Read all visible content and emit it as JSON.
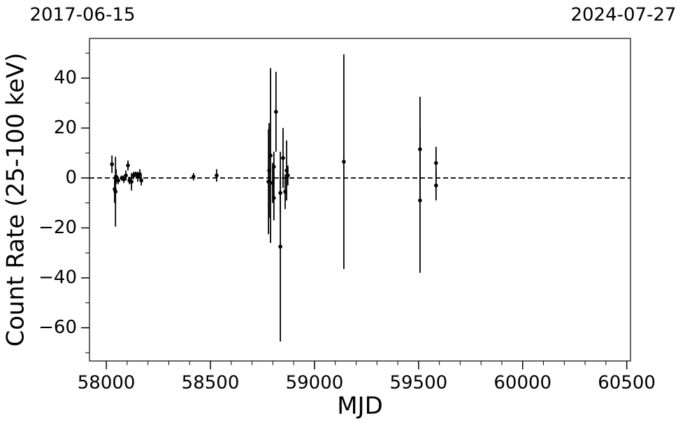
{
  "chart_data": {
    "type": "errorbar",
    "xlabel": "MJD",
    "ylabel": "Count Rate (25-100 keV)",
    "xlim": [
      57919,
      60518
    ],
    "ylim": [
      -73.3,
      55.9
    ],
    "xticks": [
      58000,
      58500,
      59000,
      59500,
      60000,
      60500
    ],
    "xminorticks": [
      58100,
      58200,
      58300,
      58400,
      58600,
      58700,
      58800,
      58900,
      59100,
      59200,
      59300,
      59400,
      59600,
      59700,
      59800,
      59900,
      60100,
      60200,
      60300,
      60400
    ],
    "yticks": [
      {
        "value": -60,
        "label": "−60"
      },
      {
        "value": -40,
        "label": "−40"
      },
      {
        "value": -20,
        "label": "−20"
      },
      0,
      20,
      40
    ],
    "yminorticks": [
      -70,
      -50,
      -30,
      -10,
      10,
      30,
      50
    ],
    "x2ticks": [
      {
        "value": 57919,
        "label": "2017-06-15"
      },
      {
        "value": 60518,
        "label": "2024-07-27"
      }
    ],
    "reference_line": 0,
    "color": "#000000",
    "x": [
      58027,
      58040,
      58044,
      58047,
      58057,
      58074,
      58084,
      58094,
      58104,
      58111,
      58121,
      58131,
      58141,
      58151,
      58161,
      58168,
      58419,
      58530,
      58779,
      58782,
      58789,
      58799,
      58805,
      58805,
      58815,
      58836,
      58836,
      58849,
      58859,
      58866,
      58872,
      59141,
      59507,
      59507,
      59584,
      59584
    ],
    "values": [
      5.5,
      -4.5,
      -5.5,
      0.5,
      -1,
      0,
      -0.5,
      1,
      5,
      -1,
      -1.5,
      1,
      1.5,
      0.5,
      1.5,
      -1,
      0.5,
      1,
      -1.5,
      3,
      9,
      -2,
      4.5,
      -8,
      26.5,
      -27.5,
      -6,
      8,
      -5.5,
      3,
      1,
      6.5,
      11.5,
      -9,
      6,
      -3
    ],
    "errors": [
      3.5,
      5.5,
      14,
      3,
      1.5,
      1,
      1.5,
      2,
      2,
      1.5,
      3.5,
      1.5,
      1,
      2,
      2,
      2,
      1.5,
      2.5,
      21,
      19,
      35,
      8,
      6,
      9,
      16,
      38,
      8,
      12,
      7,
      12,
      4,
      43,
      21,
      29,
      6.5,
      6
    ]
  }
}
